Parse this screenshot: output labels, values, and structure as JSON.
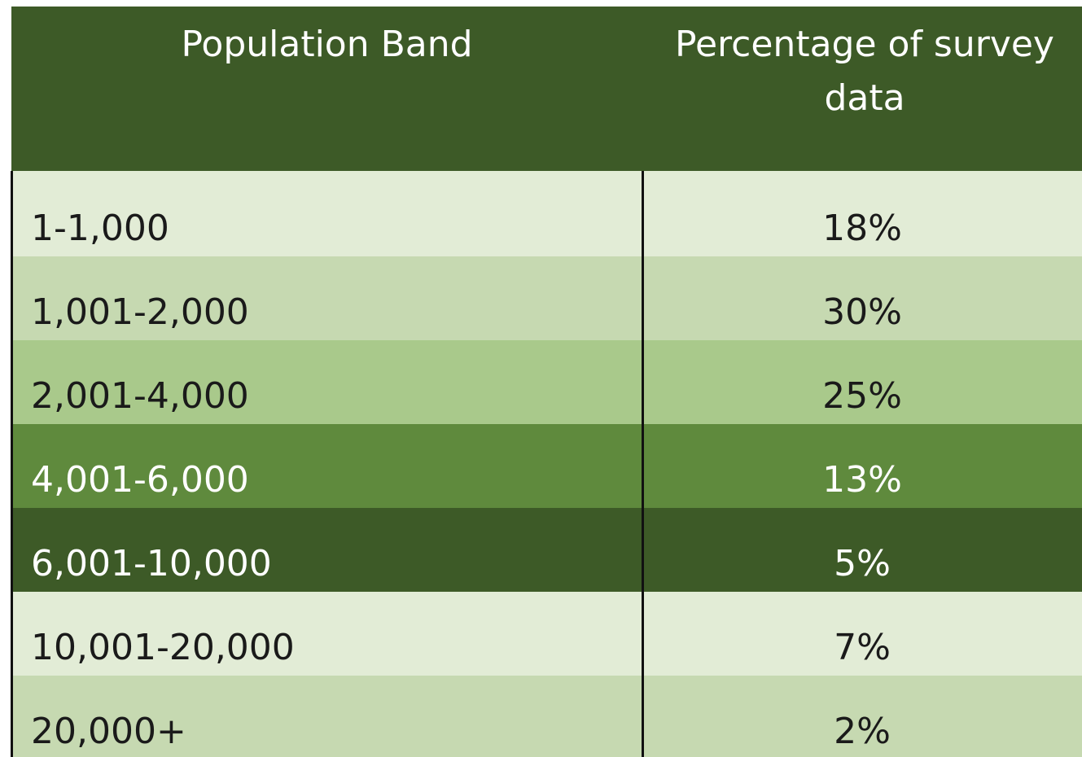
{
  "table": {
    "headers": [
      "Population Band",
      "Percentage of survey data"
    ],
    "rows": [
      [
        "1-1,000",
        "18%"
      ],
      [
        "1,001-2,000",
        "30%"
      ],
      [
        "2,001-4,000",
        "25%"
      ],
      [
        "4,001-6,000",
        "13%"
      ],
      [
        "6,001-10,000",
        "5%"
      ],
      [
        "10,001-20,000",
        "7%"
      ],
      [
        "20,000+",
        "2%"
      ]
    ]
  }
}
